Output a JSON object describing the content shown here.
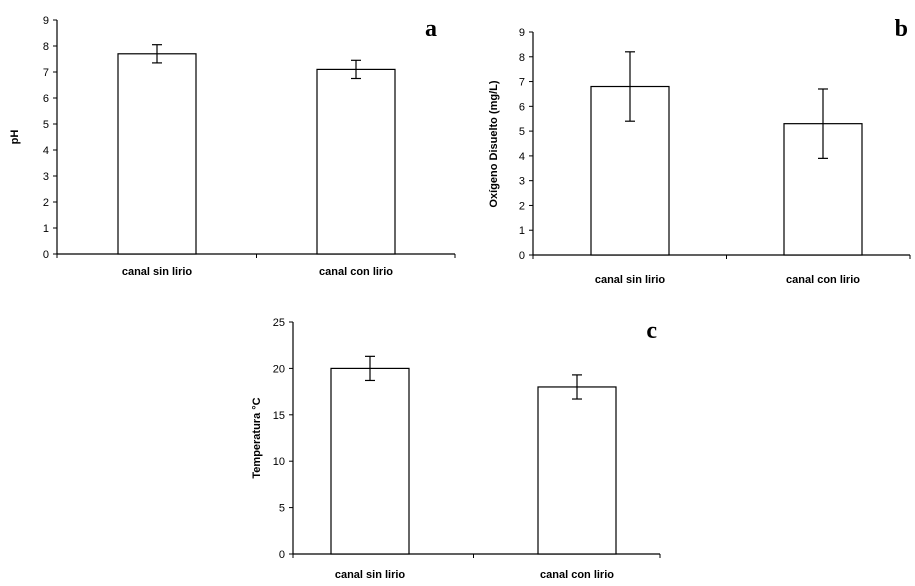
{
  "chart_data": [
    {
      "type": "bar",
      "panel_label": "a",
      "categories": [
        "canal sin lirio",
        "canal con lirio"
      ],
      "values": [
        7.7,
        7.1
      ],
      "errors": [
        0.35,
        0.35
      ],
      "ylabel": "pH",
      "ylim": [
        0,
        9
      ],
      "yticks": [
        0,
        1,
        2,
        3,
        4,
        5,
        6,
        7,
        8,
        9
      ],
      "grid": false,
      "legend": "none",
      "bar_color": "#ffffff"
    },
    {
      "type": "bar",
      "panel_label": "b",
      "categories": [
        "canal sin lirio",
        "canal con lirio"
      ],
      "values": [
        6.8,
        5.3
      ],
      "errors": [
        1.4,
        1.4
      ],
      "ylabel": "Oxígeno Disuelto (mg/L)",
      "ylim": [
        0,
        9
      ],
      "yticks": [
        0,
        1,
        2,
        3,
        4,
        5,
        6,
        7,
        8,
        9
      ],
      "grid": false,
      "legend": "none",
      "bar_color": "#ffffff"
    },
    {
      "type": "bar",
      "panel_label": "c",
      "categories": [
        "canal sin lirio",
        "canal con lirio"
      ],
      "values": [
        20,
        18
      ],
      "errors": [
        1.3,
        1.3
      ],
      "ylabel": "Temperatura °C",
      "ylim": [
        0,
        25
      ],
      "yticks": [
        0,
        5,
        10,
        15,
        20,
        25
      ],
      "grid": false,
      "legend": "none",
      "bar_color": "#ffffff"
    }
  ]
}
